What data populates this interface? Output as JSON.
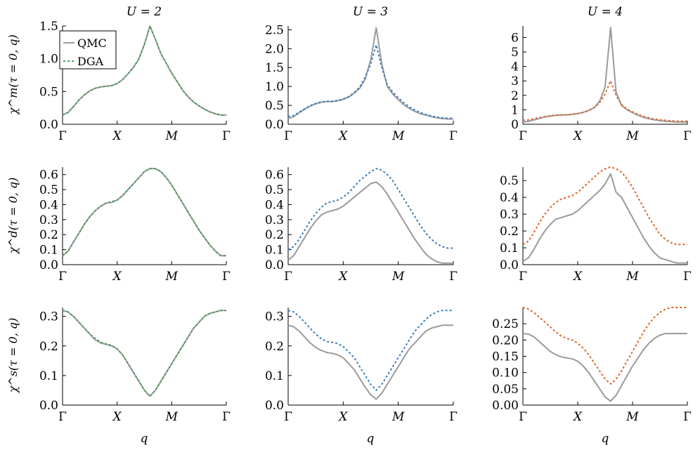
{
  "colors": {
    "qmc": "#9a9a9a",
    "dga_u2": "#4e9a5a",
    "dga_u3": "#3b7fbf",
    "dga_u4": "#e0642a"
  },
  "column_titles": [
    "U = 2",
    "U = 3",
    "U = 4"
  ],
  "row_ylabels": [
    "χ^m(τ = 0, q)",
    "χ^d(τ = 0, q)",
    "χ^s(τ = 0, q)"
  ],
  "x_tick_labels": [
    "Γ",
    "X",
    "M",
    "Γ"
  ],
  "x_axis_label": "q",
  "legend": [
    "QMC",
    "DGA"
  ],
  "chart_data": [
    {
      "type": "line",
      "row": 0,
      "col": 0,
      "ylim": [
        0,
        1.5
      ],
      "yticks": [
        0,
        0.5,
        1,
        1.5
      ],
      "ytick_labels": [
        "0.0",
        "0.5",
        "1.0",
        "1.5"
      ],
      "x": [
        0,
        0.5,
        1,
        1.5,
        2,
        2.5,
        3,
        3.5,
        4,
        4.5,
        5,
        5.5,
        6,
        6.5,
        7,
        7.5,
        8,
        8.5,
        9,
        9.5,
        10,
        10.5,
        11,
        11.5,
        12,
        12.5,
        13,
        13.5,
        14,
        14.5,
        15
      ],
      "series": [
        {
          "name": "QMC",
          "values": [
            0.14,
            0.18,
            0.27,
            0.37,
            0.45,
            0.51,
            0.55,
            0.57,
            0.58,
            0.59,
            0.62,
            0.68,
            0.77,
            0.87,
            1.0,
            1.22,
            1.5,
            1.3,
            1.08,
            0.93,
            0.78,
            0.65,
            0.52,
            0.42,
            0.34,
            0.28,
            0.23,
            0.19,
            0.16,
            0.14,
            0.14
          ]
        },
        {
          "name": "DGA",
          "values": [
            0.14,
            0.18,
            0.27,
            0.37,
            0.45,
            0.51,
            0.55,
            0.57,
            0.58,
            0.59,
            0.62,
            0.68,
            0.77,
            0.87,
            1.0,
            1.22,
            1.5,
            1.3,
            1.08,
            0.93,
            0.78,
            0.65,
            0.52,
            0.42,
            0.34,
            0.28,
            0.23,
            0.19,
            0.16,
            0.14,
            0.14
          ]
        }
      ]
    },
    {
      "type": "line",
      "row": 0,
      "col": 1,
      "ylim": [
        0,
        2.6
      ],
      "yticks": [
        0,
        0.5,
        1,
        1.5,
        2,
        2.5
      ],
      "ytick_labels": [
        "0.0",
        "0.5",
        "1.0",
        "1.5",
        "2.0",
        "2.5"
      ],
      "x": [
        0,
        0.5,
        1,
        1.5,
        2,
        2.5,
        3,
        3.5,
        4,
        4.5,
        5,
        5.5,
        6,
        6.5,
        7,
        7.5,
        8,
        8.5,
        9,
        9.5,
        10,
        10.5,
        11,
        11.5,
        12,
        12.5,
        13,
        13.5,
        14,
        14.5,
        15
      ],
      "series": [
        {
          "name": "QMC",
          "values": [
            0.15,
            0.2,
            0.3,
            0.4,
            0.48,
            0.54,
            0.58,
            0.6,
            0.6,
            0.62,
            0.66,
            0.72,
            0.82,
            0.95,
            1.2,
            1.7,
            2.55,
            1.6,
            1.0,
            0.8,
            0.65,
            0.52,
            0.42,
            0.34,
            0.28,
            0.24,
            0.2,
            0.17,
            0.15,
            0.14,
            0.14
          ]
        },
        {
          "name": "DGA",
          "values": [
            0.2,
            0.23,
            0.32,
            0.41,
            0.49,
            0.55,
            0.59,
            0.61,
            0.61,
            0.63,
            0.67,
            0.73,
            0.84,
            0.98,
            1.25,
            1.6,
            2.1,
            1.5,
            1.05,
            0.85,
            0.7,
            0.57,
            0.46,
            0.38,
            0.31,
            0.26,
            0.22,
            0.19,
            0.17,
            0.16,
            0.16
          ]
        }
      ]
    },
    {
      "type": "line",
      "row": 0,
      "col": 2,
      "ylim": [
        0,
        6.8
      ],
      "yticks": [
        0,
        1,
        2,
        3,
        4,
        5,
        6
      ],
      "ytick_labels": [
        "0",
        "1",
        "2",
        "3",
        "4",
        "5",
        "6"
      ],
      "x": [
        0,
        0.5,
        1,
        1.5,
        2,
        2.5,
        3,
        3.5,
        4,
        4.5,
        5,
        5.5,
        6,
        6.5,
        7,
        7.5,
        8,
        8.5,
        9,
        9.5,
        10,
        10.5,
        11,
        11.5,
        12,
        12.5,
        13,
        13.5,
        14,
        14.5,
        15
      ],
      "series": [
        {
          "name": "QMC",
          "values": [
            0.15,
            0.2,
            0.3,
            0.4,
            0.5,
            0.57,
            0.62,
            0.64,
            0.65,
            0.68,
            0.74,
            0.82,
            0.95,
            1.15,
            1.6,
            2.6,
            6.7,
            2.2,
            1.3,
            1.0,
            0.8,
            0.62,
            0.48,
            0.38,
            0.3,
            0.25,
            0.21,
            0.18,
            0.16,
            0.15,
            0.15
          ]
        },
        {
          "name": "DGA",
          "values": [
            0.28,
            0.3,
            0.38,
            0.46,
            0.53,
            0.59,
            0.63,
            0.65,
            0.66,
            0.69,
            0.74,
            0.82,
            0.95,
            1.15,
            1.5,
            2.1,
            3.0,
            2.0,
            1.35,
            1.05,
            0.85,
            0.68,
            0.54,
            0.44,
            0.36,
            0.31,
            0.27,
            0.24,
            0.22,
            0.21,
            0.21
          ]
        }
      ]
    },
    {
      "type": "line",
      "row": 1,
      "col": 0,
      "ylim": [
        0,
        0.65
      ],
      "yticks": [
        0,
        0.1,
        0.2,
        0.3,
        0.4,
        0.5,
        0.6
      ],
      "ytick_labels": [
        "0.0",
        "0.1",
        "0.2",
        "0.3",
        "0.4",
        "0.5",
        "0.6"
      ],
      "x": [
        0,
        0.5,
        1,
        1.5,
        2,
        2.5,
        3,
        3.5,
        4,
        4.5,
        5,
        5.5,
        6,
        6.5,
        7,
        7.5,
        8,
        8.5,
        9,
        9.5,
        10,
        10.5,
        11,
        11.5,
        12,
        12.5,
        13,
        13.5,
        14,
        14.5,
        15
      ],
      "series": [
        {
          "name": "QMC",
          "values": [
            0.06,
            0.09,
            0.15,
            0.21,
            0.27,
            0.32,
            0.36,
            0.39,
            0.41,
            0.415,
            0.43,
            0.46,
            0.5,
            0.54,
            0.58,
            0.62,
            0.64,
            0.64,
            0.62,
            0.58,
            0.53,
            0.47,
            0.41,
            0.35,
            0.29,
            0.23,
            0.18,
            0.13,
            0.09,
            0.06,
            0.06
          ]
        },
        {
          "name": "DGA",
          "values": [
            0.06,
            0.09,
            0.15,
            0.21,
            0.27,
            0.32,
            0.36,
            0.39,
            0.41,
            0.42,
            0.43,
            0.46,
            0.5,
            0.54,
            0.58,
            0.62,
            0.64,
            0.64,
            0.62,
            0.58,
            0.53,
            0.47,
            0.41,
            0.35,
            0.29,
            0.23,
            0.18,
            0.13,
            0.09,
            0.06,
            0.06
          ]
        }
      ]
    },
    {
      "type": "line",
      "row": 1,
      "col": 1,
      "ylim": [
        0,
        0.65
      ],
      "yticks": [
        0,
        0.1,
        0.2,
        0.3,
        0.4,
        0.5,
        0.6
      ],
      "ytick_labels": [
        "0.0",
        "0.1",
        "0.2",
        "0.3",
        "0.4",
        "0.5",
        "0.6"
      ],
      "x": [
        0,
        0.5,
        1,
        1.5,
        2,
        2.5,
        3,
        3.5,
        4,
        4.5,
        5,
        5.5,
        6,
        6.5,
        7,
        7.5,
        8,
        8.5,
        9,
        9.5,
        10,
        10.5,
        11,
        11.5,
        12,
        12.5,
        13,
        13.5,
        14,
        14.5,
        15
      ],
      "series": [
        {
          "name": "QMC",
          "values": [
            0.03,
            0.06,
            0.12,
            0.18,
            0.24,
            0.29,
            0.33,
            0.35,
            0.36,
            0.37,
            0.39,
            0.42,
            0.45,
            0.48,
            0.51,
            0.54,
            0.55,
            0.52,
            0.47,
            0.41,
            0.35,
            0.29,
            0.23,
            0.17,
            0.12,
            0.07,
            0.04,
            0.02,
            0.01,
            0.01,
            0.01
          ]
        },
        {
          "name": "DGA",
          "values": [
            0.1,
            0.12,
            0.17,
            0.23,
            0.29,
            0.34,
            0.38,
            0.41,
            0.42,
            0.43,
            0.45,
            0.48,
            0.52,
            0.56,
            0.59,
            0.62,
            0.64,
            0.63,
            0.6,
            0.56,
            0.5,
            0.44,
            0.38,
            0.32,
            0.26,
            0.21,
            0.17,
            0.14,
            0.12,
            0.11,
            0.11
          ]
        }
      ]
    },
    {
      "type": "line",
      "row": 1,
      "col": 2,
      "ylim": [
        0,
        0.58
      ],
      "yticks": [
        0,
        0.1,
        0.2,
        0.3,
        0.4,
        0.5
      ],
      "ytick_labels": [
        "0.0",
        "0.1",
        "0.2",
        "0.3",
        "0.4",
        "0.5"
      ],
      "x": [
        0,
        0.5,
        1,
        1.5,
        2,
        2.5,
        3,
        3.5,
        4,
        4.5,
        5,
        5.5,
        6,
        6.5,
        7,
        7.5,
        8,
        8.5,
        9,
        9.5,
        10,
        10.5,
        11,
        11.5,
        12,
        12.5,
        13,
        13.5,
        14,
        14.5,
        15
      ],
      "series": [
        {
          "name": "QMC",
          "values": [
            0.02,
            0.04,
            0.09,
            0.15,
            0.2,
            0.24,
            0.27,
            0.28,
            0.29,
            0.3,
            0.32,
            0.35,
            0.38,
            0.41,
            0.44,
            0.48,
            0.54,
            0.43,
            0.4,
            0.34,
            0.28,
            0.22,
            0.16,
            0.11,
            0.07,
            0.04,
            0.03,
            0.02,
            0.01,
            0.01,
            0.01
          ]
        },
        {
          "name": "DGA",
          "values": [
            0.12,
            0.14,
            0.19,
            0.25,
            0.3,
            0.34,
            0.37,
            0.39,
            0.4,
            0.41,
            0.43,
            0.46,
            0.49,
            0.52,
            0.55,
            0.57,
            0.58,
            0.57,
            0.55,
            0.51,
            0.46,
            0.4,
            0.34,
            0.28,
            0.23,
            0.18,
            0.15,
            0.13,
            0.12,
            0.12,
            0.12
          ]
        }
      ]
    },
    {
      "type": "line",
      "row": 2,
      "col": 0,
      "ylim": [
        0,
        0.33
      ],
      "yticks": [
        0,
        0.1,
        0.2,
        0.3
      ],
      "ytick_labels": [
        "0.0",
        "0.1",
        "0.2",
        "0.3"
      ],
      "x": [
        0,
        0.5,
        1,
        1.5,
        2,
        2.5,
        3,
        3.5,
        4,
        4.5,
        5,
        5.5,
        6,
        6.5,
        7,
        7.5,
        8,
        8.5,
        9,
        9.5,
        10,
        10.5,
        11,
        11.5,
        12,
        12.5,
        13,
        13.5,
        14,
        14.5,
        15
      ],
      "series": [
        {
          "name": "QMC",
          "values": [
            0.32,
            0.315,
            0.3,
            0.28,
            0.26,
            0.24,
            0.22,
            0.21,
            0.205,
            0.2,
            0.19,
            0.17,
            0.14,
            0.11,
            0.08,
            0.05,
            0.03,
            0.05,
            0.08,
            0.11,
            0.14,
            0.17,
            0.2,
            0.23,
            0.26,
            0.28,
            0.3,
            0.31,
            0.315,
            0.32,
            0.32
          ]
        },
        {
          "name": "DGA",
          "values": [
            0.32,
            0.315,
            0.3,
            0.28,
            0.26,
            0.24,
            0.225,
            0.212,
            0.207,
            0.202,
            0.19,
            0.17,
            0.14,
            0.11,
            0.08,
            0.05,
            0.03,
            0.05,
            0.08,
            0.11,
            0.14,
            0.17,
            0.2,
            0.23,
            0.26,
            0.28,
            0.3,
            0.31,
            0.315,
            0.32,
            0.32
          ]
        }
      ]
    },
    {
      "type": "line",
      "row": 2,
      "col": 1,
      "ylim": [
        0,
        0.33
      ],
      "yticks": [
        0,
        0.1,
        0.2,
        0.3
      ],
      "ytick_labels": [
        "0.0",
        "0.1",
        "0.2",
        "0.3"
      ],
      "x": [
        0,
        0.5,
        1,
        1.5,
        2,
        2.5,
        3,
        3.5,
        4,
        4.5,
        5,
        5.5,
        6,
        6.5,
        7,
        7.5,
        8,
        8.5,
        9,
        9.5,
        10,
        10.5,
        11,
        11.5,
        12,
        12.5,
        13,
        13.5,
        14,
        14.5,
        15
      ],
      "series": [
        {
          "name": "QMC",
          "values": [
            0.27,
            0.265,
            0.25,
            0.23,
            0.21,
            0.195,
            0.185,
            0.178,
            0.175,
            0.17,
            0.16,
            0.14,
            0.12,
            0.09,
            0.06,
            0.035,
            0.02,
            0.04,
            0.07,
            0.1,
            0.13,
            0.16,
            0.19,
            0.21,
            0.23,
            0.25,
            0.26,
            0.265,
            0.27,
            0.27,
            0.27
          ]
        },
        {
          "name": "DGA",
          "values": [
            0.32,
            0.315,
            0.3,
            0.28,
            0.26,
            0.24,
            0.225,
            0.215,
            0.212,
            0.208,
            0.198,
            0.18,
            0.16,
            0.13,
            0.1,
            0.07,
            0.05,
            0.07,
            0.1,
            0.13,
            0.16,
            0.19,
            0.22,
            0.25,
            0.27,
            0.29,
            0.305,
            0.315,
            0.32,
            0.32,
            0.32
          ]
        }
      ]
    },
    {
      "type": "line",
      "row": 2,
      "col": 2,
      "ylim": [
        0,
        0.3
      ],
      "yticks": [
        0,
        0.05,
        0.1,
        0.15,
        0.2,
        0.25
      ],
      "ytick_labels": [
        "0.00",
        "0.05",
        "0.10",
        "0.15",
        "0.20",
        "0.25"
      ],
      "x": [
        0,
        0.5,
        1,
        1.5,
        2,
        2.5,
        3,
        3.5,
        4,
        4.5,
        5,
        5.5,
        6,
        6.5,
        7,
        7.5,
        8,
        8.5,
        9,
        9.5,
        10,
        10.5,
        11,
        11.5,
        12,
        12.5,
        13,
        13.5,
        14,
        14.5,
        15
      ],
      "series": [
        {
          "name": "QMC",
          "values": [
            0.22,
            0.218,
            0.21,
            0.195,
            0.18,
            0.165,
            0.155,
            0.148,
            0.145,
            0.142,
            0.135,
            0.12,
            0.1,
            0.075,
            0.05,
            0.025,
            0.012,
            0.03,
            0.06,
            0.09,
            0.12,
            0.145,
            0.17,
            0.19,
            0.205,
            0.215,
            0.22,
            0.22,
            0.22,
            0.22,
            0.22
          ]
        },
        {
          "name": "DGA",
          "values": [
            0.3,
            0.295,
            0.285,
            0.27,
            0.255,
            0.24,
            0.225,
            0.212,
            0.205,
            0.2,
            0.19,
            0.175,
            0.155,
            0.13,
            0.105,
            0.08,
            0.065,
            0.08,
            0.105,
            0.135,
            0.165,
            0.195,
            0.225,
            0.25,
            0.27,
            0.285,
            0.295,
            0.3,
            0.3,
            0.3,
            0.3
          ]
        }
      ]
    }
  ]
}
